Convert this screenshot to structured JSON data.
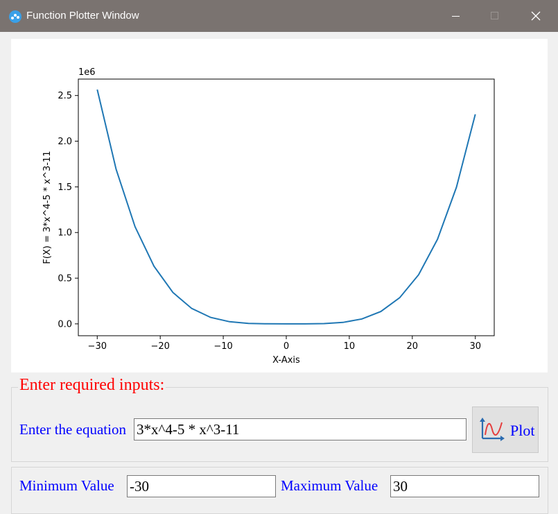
{
  "window": {
    "title": "Function Plotter Window",
    "icon": "app-dots-icon",
    "controls": [
      "minimize-icon",
      "maximize-icon",
      "close-icon"
    ]
  },
  "chart_data": {
    "type": "line",
    "title": "",
    "xlabel": "X-Axis",
    "ylabel": "F(X) = 3*x^4-5 * x^3-11",
    "y_offset_label": "1e6",
    "xlim": [
      -33,
      33
    ],
    "ylim": [
      -130000,
      2680000
    ],
    "x_ticks": [
      -30,
      -20,
      -10,
      0,
      10,
      20,
      30
    ],
    "x_tick_labels": [
      "−30",
      "−20",
      "−10",
      "0",
      "10",
      "20",
      "30"
    ],
    "y_ticks": [
      0,
      500000,
      1000000,
      1500000,
      2000000,
      2500000
    ],
    "y_tick_labels": [
      "0.0",
      "0.5",
      "1.0",
      "1.5",
      "2.0",
      "2.5"
    ],
    "grid": false,
    "series": [
      {
        "color": "#1f77b4",
        "x": [
          -30,
          -27,
          -24,
          -21,
          -18,
          -15,
          -12,
          -9,
          -6,
          -3,
          0,
          3,
          6,
          9,
          12,
          15,
          18,
          21,
          24,
          27,
          30
        ],
        "y": [
          2565000,
          1692810,
          1064069,
          631427,
          344077,
          168739,
          70837,
          23308,
          4957,
          367,
          -11,
          97,
          2797,
          16028,
          53557,
          135014,
          285829,
          537286,
          926581,
          1495808,
          2295000
        ]
      }
    ]
  },
  "inputs_group": {
    "title": "Enter required inputs:",
    "equation_label": "Enter the equation",
    "equation_value": "3*x^4-5 * x^3-11",
    "plot_button_label": "Plot",
    "plot_button_icon": "chart-curve-icon"
  },
  "range_group": {
    "min_label": "Minimum Value",
    "min_value": "-30",
    "max_label": "Maximum Value",
    "max_value": "30"
  },
  "colors": {
    "titlebar": "#7a7370",
    "label": "#0000ff",
    "group_title": "#ff0000",
    "line": "#1f77b4"
  }
}
